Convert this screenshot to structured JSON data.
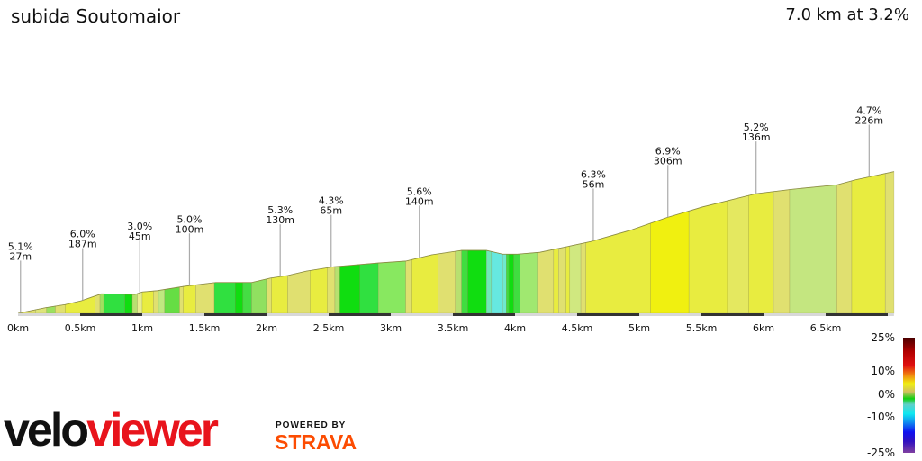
{
  "header": {
    "title": "subida Soutomaior",
    "summary": "7.0 km at 3.2%"
  },
  "chart_data": {
    "type": "area",
    "title": "subida Soutomaior",
    "xlabel": "",
    "ylabel": "",
    "x_unit": "km",
    "xlim": [
      0,
      7.05
    ],
    "x_ticks": [
      "0km",
      "0.5km",
      "1km",
      "1.5km",
      "2km",
      "2.5km",
      "3km",
      "3.5km",
      "4km",
      "4.5km",
      "5km",
      "5.5km",
      "6km",
      "6.5km"
    ],
    "x_tick_values": [
      0,
      0.5,
      1,
      1.5,
      2,
      2.5,
      3,
      3.5,
      4,
      4.5,
      5,
      5.5,
      6,
      6.5
    ],
    "grid": false,
    "profile_elevation_gain_m": [
      [
        0,
        0
      ],
      [
        0.22,
        9
      ],
      [
        0.38,
        14
      ],
      [
        0.51,
        20
      ],
      [
        0.67,
        31
      ],
      [
        0.94,
        30
      ],
      [
        1.0,
        34
      ],
      [
        1.12,
        36
      ],
      [
        1.34,
        43
      ],
      [
        1.59,
        49
      ],
      [
        1.88,
        49
      ],
      [
        2.03,
        56
      ],
      [
        2.17,
        60
      ],
      [
        2.32,
        67
      ],
      [
        2.54,
        74
      ],
      [
        2.9,
        80
      ],
      [
        3.12,
        83
      ],
      [
        3.33,
        93
      ],
      [
        3.57,
        100
      ],
      [
        3.77,
        100
      ],
      [
        3.9,
        94
      ],
      [
        4.02,
        94
      ],
      [
        4.2,
        97
      ],
      [
        4.42,
        106
      ],
      [
        4.61,
        114
      ],
      [
        4.93,
        132
      ],
      [
        5.22,
        152
      ],
      [
        5.51,
        169
      ],
      [
        5.94,
        190
      ],
      [
        6.23,
        197
      ],
      [
        6.59,
        204
      ],
      [
        6.74,
        212
      ],
      [
        7.05,
        225
      ]
    ],
    "segments": [
      [
        0,
        0.14,
        "#e0e070"
      ],
      [
        0.14,
        0.23,
        "#dde47a"
      ],
      [
        0.23,
        0.3,
        "#9be060"
      ],
      [
        0.3,
        0.38,
        "#e0e070"
      ],
      [
        0.38,
        0.62,
        "#e8ec40"
      ],
      [
        0.62,
        0.66,
        "#e0e070"
      ],
      [
        0.66,
        0.69,
        "#a0e060"
      ],
      [
        0.69,
        0.86,
        "#30e040"
      ],
      [
        0.86,
        0.92,
        "#10dd10"
      ],
      [
        0.92,
        0.96,
        "#b8e070"
      ],
      [
        0.96,
        1.0,
        "#e8ee90"
      ],
      [
        1.0,
        1.09,
        "#e8ec40"
      ],
      [
        1.09,
        1.13,
        "#e0e070"
      ],
      [
        1.13,
        1.18,
        "#c0e880"
      ],
      [
        1.18,
        1.3,
        "#66dd44"
      ],
      [
        1.3,
        1.33,
        "#e0e070"
      ],
      [
        1.33,
        1.43,
        "#e8ec40"
      ],
      [
        1.43,
        1.58,
        "#e0e070"
      ],
      [
        1.58,
        1.75,
        "#30e040"
      ],
      [
        1.75,
        1.81,
        "#10dd10"
      ],
      [
        1.81,
        1.88,
        "#44dd44"
      ],
      [
        1.88,
        2.0,
        "#90e060"
      ],
      [
        2.0,
        2.04,
        "#e0e070"
      ],
      [
        2.04,
        2.17,
        "#e8ec40"
      ],
      [
        2.17,
        2.35,
        "#e0e070"
      ],
      [
        2.35,
        2.49,
        "#e8ec40"
      ],
      [
        2.49,
        2.55,
        "#e0e070"
      ],
      [
        2.55,
        2.59,
        "#b8e070"
      ],
      [
        2.59,
        2.75,
        "#10dd10"
      ],
      [
        2.75,
        2.9,
        "#30e040"
      ],
      [
        2.9,
        3.12,
        "#88e860"
      ],
      [
        3.12,
        3.17,
        "#e0e070"
      ],
      [
        3.17,
        3.38,
        "#e8ec40"
      ],
      [
        3.38,
        3.52,
        "#e0e070"
      ],
      [
        3.52,
        3.57,
        "#b8e070"
      ],
      [
        3.57,
        3.62,
        "#40dd40"
      ],
      [
        3.62,
        3.77,
        "#10dd10"
      ],
      [
        3.77,
        3.81,
        "#70e8b8"
      ],
      [
        3.81,
        3.9,
        "#66e8e0"
      ],
      [
        3.9,
        3.93,
        "#70e8d0"
      ],
      [
        3.93,
        3.95,
        "#40dd40"
      ],
      [
        3.95,
        3.99,
        "#10dd10"
      ],
      [
        3.99,
        4.04,
        "#40dd40"
      ],
      [
        4.04,
        4.18,
        "#a0e870"
      ],
      [
        4.18,
        4.31,
        "#e0e070"
      ],
      [
        4.31,
        4.35,
        "#e8ec40"
      ],
      [
        4.35,
        4.41,
        "#e0e070"
      ],
      [
        4.41,
        4.44,
        "#e8ec40"
      ],
      [
        4.44,
        4.53,
        "#d0e880"
      ],
      [
        4.53,
        4.57,
        "#e0e070"
      ],
      [
        4.57,
        5.09,
        "#e8ec40"
      ],
      [
        5.09,
        5.4,
        "#f0f010"
      ],
      [
        5.4,
        5.71,
        "#e8ec40"
      ],
      [
        5.71,
        5.88,
        "#e4e860"
      ],
      [
        5.88,
        6.08,
        "#e8ec40"
      ],
      [
        6.08,
        6.21,
        "#e0e070"
      ],
      [
        6.21,
        6.59,
        "#c4e680"
      ],
      [
        6.59,
        6.71,
        "#e0e070"
      ],
      [
        6.71,
        6.98,
        "#e8ec40"
      ],
      [
        6.98,
        7.05,
        "#e0e070"
      ]
    ],
    "annotations": [
      {
        "km": 0.02,
        "grade": "5.1%",
        "length": "27m"
      },
      {
        "km": 0.52,
        "grade": "6.0%",
        "length": "187m"
      },
      {
        "km": 0.98,
        "grade": "3.0%",
        "length": "45m"
      },
      {
        "km": 1.38,
        "grade": "5.0%",
        "length": "100m"
      },
      {
        "km": 2.11,
        "grade": "5.3%",
        "length": "130m"
      },
      {
        "km": 2.52,
        "grade": "4.3%",
        "length": "65m"
      },
      {
        "km": 3.23,
        "grade": "5.6%",
        "length": "140m"
      },
      {
        "km": 4.63,
        "grade": "6.3%",
        "length": "56m"
      },
      {
        "km": 5.23,
        "grade": "6.9%",
        "length": "306m"
      },
      {
        "km": 5.94,
        "grade": "5.2%",
        "length": "136m"
      },
      {
        "km": 6.85,
        "grade": "4.7%",
        "length": "226m"
      }
    ],
    "legend": {
      "labels": [
        "25%",
        "10%",
        "0%",
        "-10%",
        "-25%"
      ],
      "placement": "bottom-right"
    }
  },
  "branding": {
    "logo_velo": "velo",
    "logo_viewer": "viewer",
    "powered_by": "POWERED BY",
    "strava": "STRAVA",
    "viewer_color": "#e8141c",
    "strava_color": "#fc4c02"
  }
}
